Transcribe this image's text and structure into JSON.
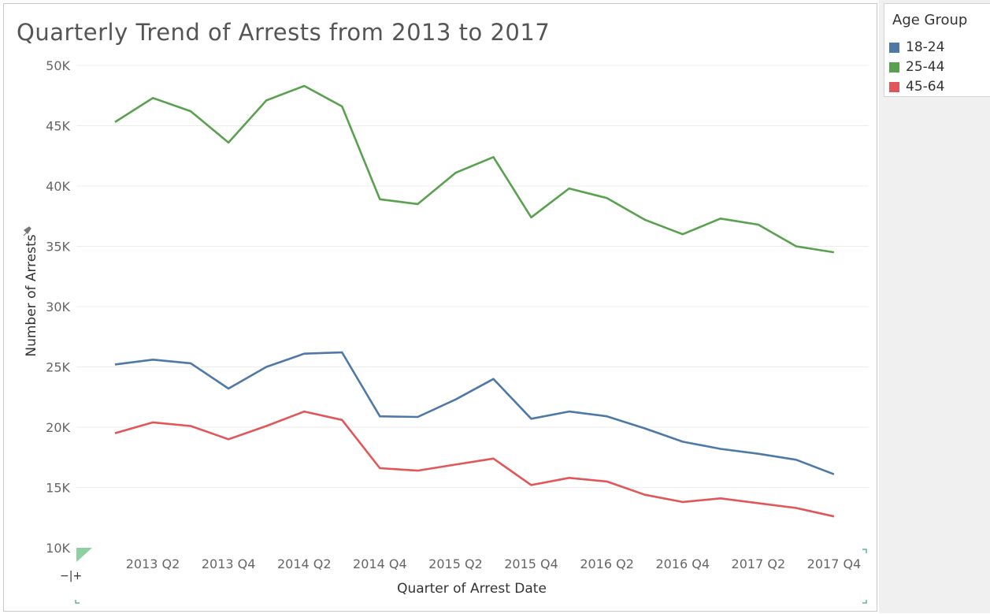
{
  "chart_data": {
    "type": "line",
    "title": "Quarterly Trend of Arrests from 2013 to 2017",
    "xlabel": "Quarter of Arrest Date",
    "ylabel": "Number of Arrests",
    "ylim": [
      10000,
      50000
    ],
    "yticks": [
      {
        "value": 10000,
        "label": "10K"
      },
      {
        "value": 15000,
        "label": "15K"
      },
      {
        "value": 20000,
        "label": "20K"
      },
      {
        "value": 25000,
        "label": "25K"
      },
      {
        "value": 30000,
        "label": "30K"
      },
      {
        "value": 35000,
        "label": "35K"
      },
      {
        "value": 40000,
        "label": "40K"
      },
      {
        "value": 45000,
        "label": "45K"
      },
      {
        "value": 50000,
        "label": "50K"
      }
    ],
    "x": [
      "2013 Q1",
      "2013 Q2",
      "2013 Q3",
      "2013 Q4",
      "2014 Q1",
      "2014 Q2",
      "2014 Q3",
      "2014 Q4",
      "2015 Q1",
      "2015 Q2",
      "2015 Q3",
      "2015 Q4",
      "2016 Q1",
      "2016 Q2",
      "2016 Q3",
      "2016 Q4",
      "2017 Q1",
      "2017 Q2",
      "2017 Q3",
      "2017 Q4"
    ],
    "xtick_labels": [
      "2013 Q2",
      "2013 Q4",
      "2014 Q2",
      "2014 Q4",
      "2015 Q2",
      "2015 Q4",
      "2016 Q2",
      "2016 Q4",
      "2017 Q2",
      "2017 Q4"
    ],
    "legend": {
      "title": "Age Group",
      "placement": "top-right"
    },
    "grid": true,
    "series": [
      {
        "name": "18-24",
        "color": "#4e79a7",
        "values": [
          25200,
          25600,
          25300,
          23200,
          25000,
          26100,
          26200,
          20900,
          20850,
          22300,
          24000,
          20700,
          21300,
          20900,
          19900,
          18800,
          18200,
          17800,
          17300,
          16100
        ]
      },
      {
        "name": "25-44",
        "color": "#59a14f",
        "values": [
          45300,
          47300,
          46200,
          43600,
          47100,
          48300,
          46600,
          38900,
          38500,
          41100,
          42400,
          37400,
          39800,
          39000,
          37200,
          36000,
          37300,
          36800,
          35000,
          34500
        ]
      },
      {
        "name": "45-64",
        "color": "#e15759",
        "values": [
          19500,
          20400,
          20100,
          19000,
          20100,
          21300,
          20600,
          16600,
          16400,
          16900,
          17400,
          15200,
          15800,
          15500,
          14400,
          13800,
          14100,
          13700,
          13300,
          12600
        ]
      }
    ]
  },
  "controls": {
    "zoom_toggle_label": "−|+"
  }
}
